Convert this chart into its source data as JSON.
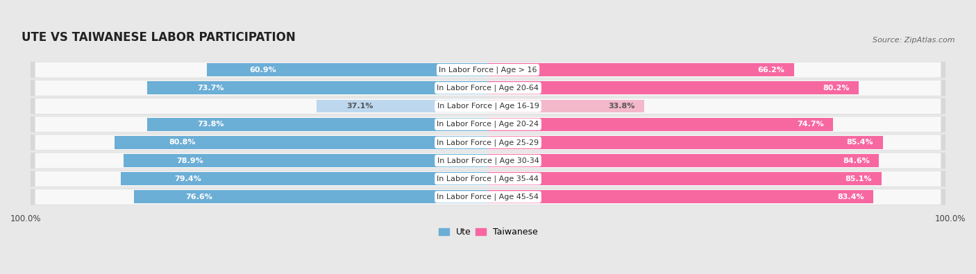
{
  "title": "UTE VS TAIWANESE LABOR PARTICIPATION",
  "source": "Source: ZipAtlas.com",
  "categories": [
    "In Labor Force | Age > 16",
    "In Labor Force | Age 20-64",
    "In Labor Force | Age 16-19",
    "In Labor Force | Age 20-24",
    "In Labor Force | Age 25-29",
    "In Labor Force | Age 30-34",
    "In Labor Force | Age 35-44",
    "In Labor Force | Age 45-54"
  ],
  "ute_values": [
    60.9,
    73.7,
    37.1,
    73.8,
    80.8,
    78.9,
    79.4,
    76.6
  ],
  "taiwanese_values": [
    66.2,
    80.2,
    33.8,
    74.7,
    85.4,
    84.6,
    85.1,
    83.4
  ],
  "ute_color_strong": "#6baed6",
  "ute_color_light": "#bdd7ee",
  "taiwanese_color_strong": "#f768a1",
  "taiwanese_color_light": "#f4b8cb",
  "bar_height": 0.72,
  "xlim": [
    0,
    200
  ],
  "background_color": "#e8e8e8",
  "row_bg_color": "#f0f0f0",
  "row_bg_light": "#e0e0e0",
  "label_fontsize": 8.0,
  "value_fontsize": 8.0,
  "title_fontsize": 12,
  "source_fontsize": 8.0,
  "legend_fontsize": 9
}
